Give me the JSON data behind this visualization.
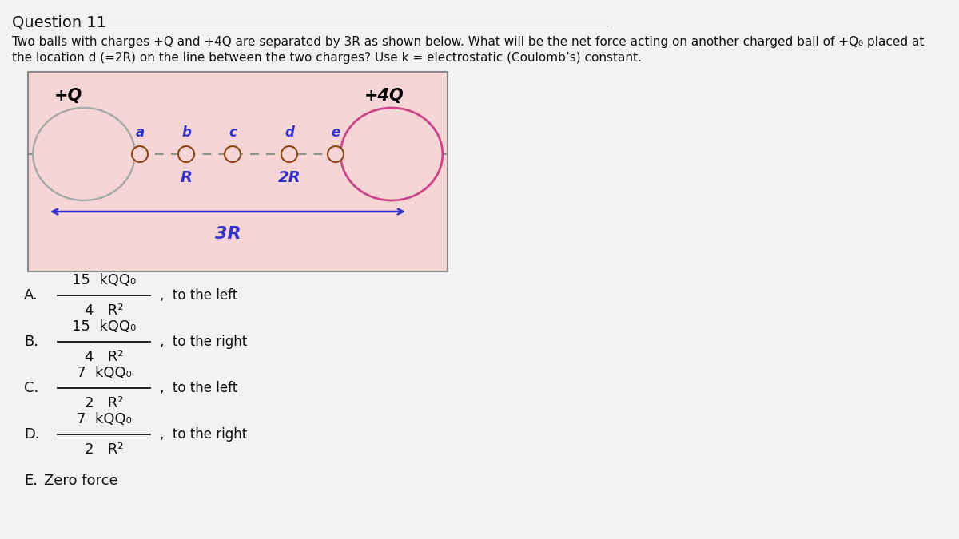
{
  "title": "Question 11",
  "question_line1": "Two balls with charges +Q and +4Q are separated by 3R as shown below. What will be the net force acting on another charged ball of +Q₀ placed at",
  "question_line2": "the location d (=2R) on the line between the two charges? Use k = electrostatic (Coulomb’s) constant.",
  "diagram": {
    "bg_color": "#f5d5d5",
    "left_ball_label": "+Q",
    "right_ball_label": "+4Q",
    "left_ball_edge_color": "#aaaaaa",
    "left_ball_face_color": "#f5d5d5",
    "right_ball_edge_color": "#cc4488",
    "right_ball_face_color": "#f5d5d5",
    "point_color": "#8B4513",
    "label_color": "#3333cc",
    "arrow_color": "#3333cc",
    "label_R": "R",
    "label_2R": "2R",
    "label_3R": "3R",
    "points": [
      "a",
      "b",
      "c",
      "d",
      "e"
    ]
  },
  "options": [
    {
      "letter": "A.",
      "num1": "15",
      "num2": "kQQ₀",
      "den1": "4",
      "den2": "R²",
      "direction": "to the left"
    },
    {
      "letter": "B.",
      "num1": "15",
      "num2": "kQQ₀",
      "den1": "4",
      "den2": "R²",
      "direction": "to the right"
    },
    {
      "letter": "C.",
      "num1": "7",
      "num2": "kQQ₀",
      "den1": "2",
      "den2": "R²",
      "direction": "to the left"
    },
    {
      "letter": "D.",
      "num1": "7",
      "num2": "kQQ₀",
      "den1": "2",
      "den2": "R²",
      "direction": "to the right"
    },
    {
      "letter": "E.",
      "text": "Zero force",
      "direction": ""
    }
  ],
  "page_bg": "#dcdcdc",
  "content_bg": "#f0f0f0"
}
